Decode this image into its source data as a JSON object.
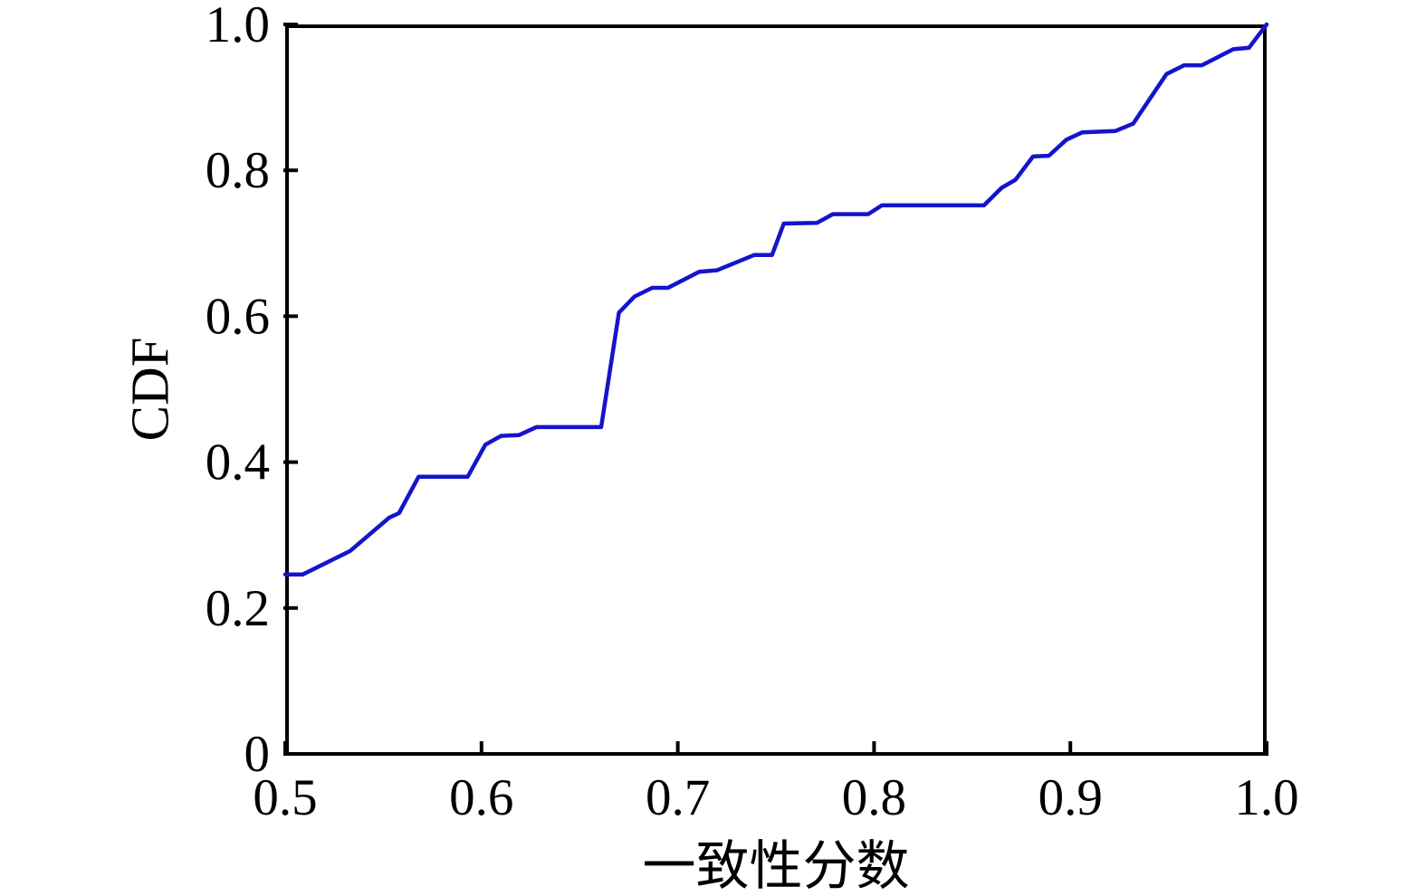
{
  "chart_data": {
    "type": "line",
    "title": "",
    "xlabel": "一致性分数",
    "ylabel": "CDF",
    "xlim": [
      0.5,
      1.0
    ],
    "ylim": [
      0,
      1.0
    ],
    "grid": false,
    "legend": "none",
    "background_color": "#ffffff",
    "axis_color": "#000000",
    "line_color": "#1414cc",
    "xticks": {
      "values": [
        0.5,
        0.6,
        0.7,
        0.8,
        0.9,
        1.0
      ],
      "labels": [
        "0.5",
        "0.6",
        "0.7",
        "0.8",
        "0.9",
        "1.0"
      ]
    },
    "yticks": {
      "values": [
        0,
        0.2,
        0.4,
        0.6,
        0.8,
        1.0
      ],
      "labels": [
        "0",
        "0.2",
        "0.4",
        "0.6",
        "0.8",
        "1.0"
      ]
    },
    "series": [
      {
        "name": "CDF",
        "color": "#1414cc",
        "points": [
          [
            0.5,
            0.246
          ],
          [
            0.509,
            0.246
          ],
          [
            0.533,
            0.278
          ],
          [
            0.553,
            0.324
          ],
          [
            0.558,
            0.33
          ],
          [
            0.568,
            0.38
          ],
          [
            0.593,
            0.38
          ],
          [
            0.602,
            0.424
          ],
          [
            0.61,
            0.436
          ],
          [
            0.619,
            0.437
          ],
          [
            0.628,
            0.448
          ],
          [
            0.661,
            0.448
          ],
          [
            0.67,
            0.605
          ],
          [
            0.678,
            0.627
          ],
          [
            0.687,
            0.639
          ],
          [
            0.695,
            0.639
          ],
          [
            0.711,
            0.661
          ],
          [
            0.72,
            0.663
          ],
          [
            0.739,
            0.684
          ],
          [
            0.748,
            0.684
          ],
          [
            0.754,
            0.727
          ],
          [
            0.771,
            0.728
          ],
          [
            0.779,
            0.74
          ],
          [
            0.797,
            0.74
          ],
          [
            0.804,
            0.752
          ],
          [
            0.856,
            0.752
          ],
          [
            0.865,
            0.776
          ],
          [
            0.872,
            0.787
          ],
          [
            0.881,
            0.819
          ],
          [
            0.889,
            0.82
          ],
          [
            0.898,
            0.842
          ],
          [
            0.906,
            0.852
          ],
          [
            0.923,
            0.854
          ],
          [
            0.932,
            0.864
          ],
          [
            0.949,
            0.932
          ],
          [
            0.958,
            0.944
          ],
          [
            0.967,
            0.944
          ],
          [
            0.983,
            0.966
          ],
          [
            0.991,
            0.968
          ],
          [
            1.0,
            1.0
          ]
        ]
      }
    ]
  }
}
